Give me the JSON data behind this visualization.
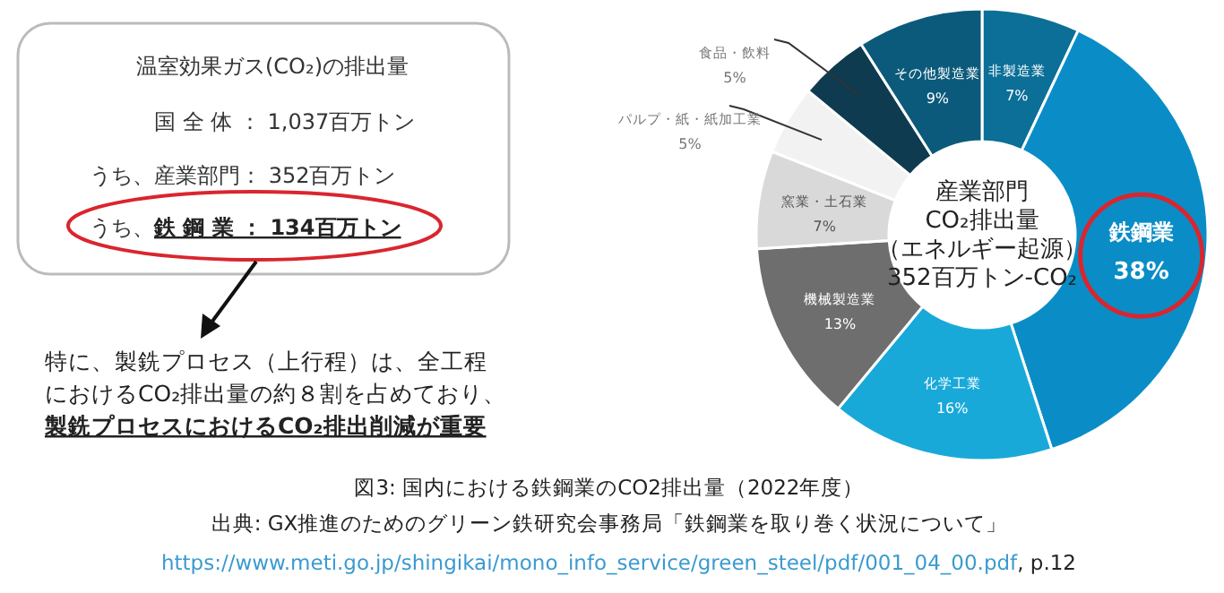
{
  "chart_data": {
    "type": "donut",
    "title": "図3: 国内における鉄鋼業のCO2排出量（2022年度）",
    "categories": [
      "非製造業",
      "鉄鋼業",
      "化学工業",
      "機械製造業",
      "窯業・土石業",
      "パルプ・紙・紙加工業",
      "食品・飲料",
      "その他製造業"
    ],
    "values": [
      7,
      38,
      16,
      13,
      7,
      5,
      5,
      9
    ],
    "value_labels": [
      "7%",
      "38%",
      "16%",
      "13%",
      "7%",
      "5%",
      "5%",
      "9%"
    ],
    "colors": [
      "#0b6f97",
      "#0a8dc7",
      "#19a9d9",
      "#6e6e6e",
      "#d9d9d9",
      "#f2f2f2",
      "#0e3b50",
      "#0c5a7b"
    ],
    "annotations": [
      "温室効果ガス(CO₂)の排出量",
      "国 全 体 ： 1,037百万トン",
      "うち、産業部門： 352百万トン",
      "うち、",
      "鉄 鋼 業 ： 134百万トン",
      "特に、製銑プロセス（上行程）は、全工程",
      "におけるCO₂排出量の約８割を占めており、",
      "製銑プロセスにおけるCO₂排出削減が重要",
      "産業部門",
      "CO₂排出量",
      "（エネルギー起源）",
      "352百万トン-CO₂",
      "出典: GX推進のためのグリーン鉄研究会事務局「鉄鋼業を取り巻く状況について」",
      "https://www.meti.go.jp/shingikai/mono_info_service/green_steel/pdf/001_04_00.pdf",
      ", p.12"
    ]
  }
}
